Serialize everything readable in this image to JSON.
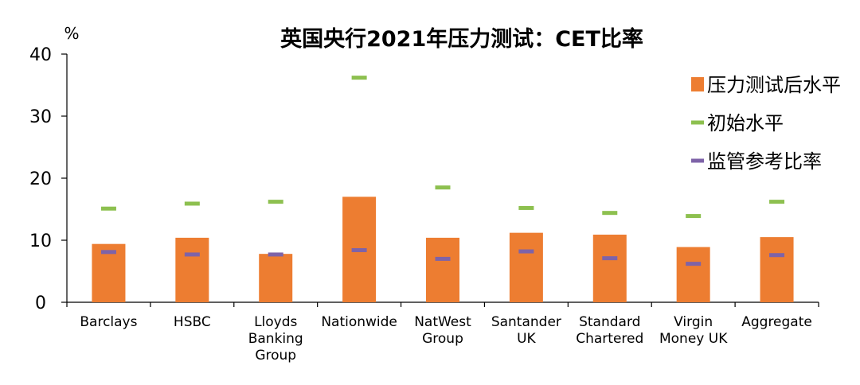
{
  "chart_data": {
    "type": "bar",
    "title": "英国央行2021年压力测试：CET比率",
    "unit_label": "%",
    "xlabel": "",
    "ylabel": "",
    "ylim": [
      0,
      40
    ],
    "yticks": [
      0,
      10,
      20,
      30,
      40
    ],
    "grid": false,
    "legend_position": "top-right",
    "categories": [
      [
        "Barclays"
      ],
      [
        "HSBC"
      ],
      [
        "Lloyds",
        "Banking",
        "Group"
      ],
      [
        "Nationwide"
      ],
      [
        "NatWest",
        "Group"
      ],
      [
        "Santander",
        "UK"
      ],
      [
        "Standard",
        "Chartered"
      ],
      [
        "Virgin",
        "Money UK"
      ],
      [
        "Aggregate"
      ]
    ],
    "series": [
      {
        "name": "压力测试后水平",
        "mark": "bar",
        "color": "#ED7D31",
        "values": [
          9.4,
          10.4,
          7.8,
          17.0,
          10.4,
          11.2,
          10.9,
          8.9,
          10.5
        ]
      },
      {
        "name": "初始水平",
        "mark": "dash",
        "color": "#8DC04F",
        "values": [
          15.1,
          15.9,
          16.2,
          36.2,
          18.5,
          15.2,
          14.4,
          13.9,
          16.2
        ]
      },
      {
        "name": "监管参考比率",
        "mark": "dash",
        "color": "#7E63A8",
        "values": [
          8.1,
          7.7,
          7.7,
          8.4,
          7.0,
          8.2,
          7.1,
          6.2,
          7.6
        ]
      }
    ]
  }
}
